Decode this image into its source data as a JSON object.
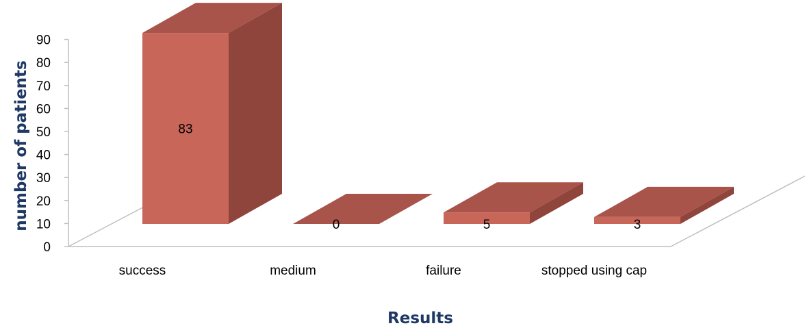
{
  "chart_data": {
    "type": "bar",
    "style": "3d-column",
    "categories": [
      "success",
      "medium",
      "failure",
      "stopped using cap"
    ],
    "values": [
      83,
      0,
      5,
      3
    ],
    "title": "",
    "xlabel": "Results",
    "ylabel": "number of patients",
    "ylim": [
      0,
      90
    ],
    "yticks": [
      0,
      10,
      20,
      30,
      40,
      50,
      60,
      70,
      80,
      90
    ],
    "data_labels": [
      "83",
      "0",
      "5",
      "3"
    ],
    "grid": false,
    "legend": "none",
    "colors": {
      "bar_front": "#c9665a",
      "bar_top": "#a8544b",
      "bar_side": "#8f443c",
      "floor_line": "#bfbfbf",
      "axis_title": "#1f3864"
    }
  }
}
